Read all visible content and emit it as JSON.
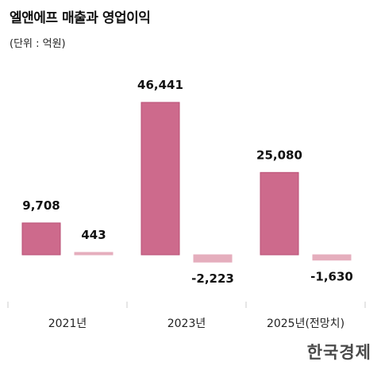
{
  "title": "엘앤에프 매출과 영업이익",
  "unit_label": "(단위 : 억원)",
  "logo_text": "한국경제",
  "colors": {
    "revenue": "#cd6a8c",
    "revenue_stroke": "#b94f75",
    "operating_profit": "#e5aebd",
    "axis_tick": "#cccccc"
  },
  "chart_data": {
    "type": "bar",
    "categories": [
      "2021년",
      "2023년",
      "2025년(전망치)"
    ],
    "series": [
      {
        "values": [
          9708,
          46441,
          25080
        ],
        "labels": [
          "9,708",
          "46,441",
          "25,080"
        ]
      },
      {
        "values": [
          443,
          -2223,
          -1630
        ],
        "labels": [
          "443",
          "-2,223",
          "-1,630"
        ]
      }
    ],
    "title": "엘앤에프 매출과 영업이익",
    "xlabel": "",
    "ylabel": "",
    "ylim": [
      -4500,
      48500
    ],
    "grid": false,
    "legend": "none"
  }
}
